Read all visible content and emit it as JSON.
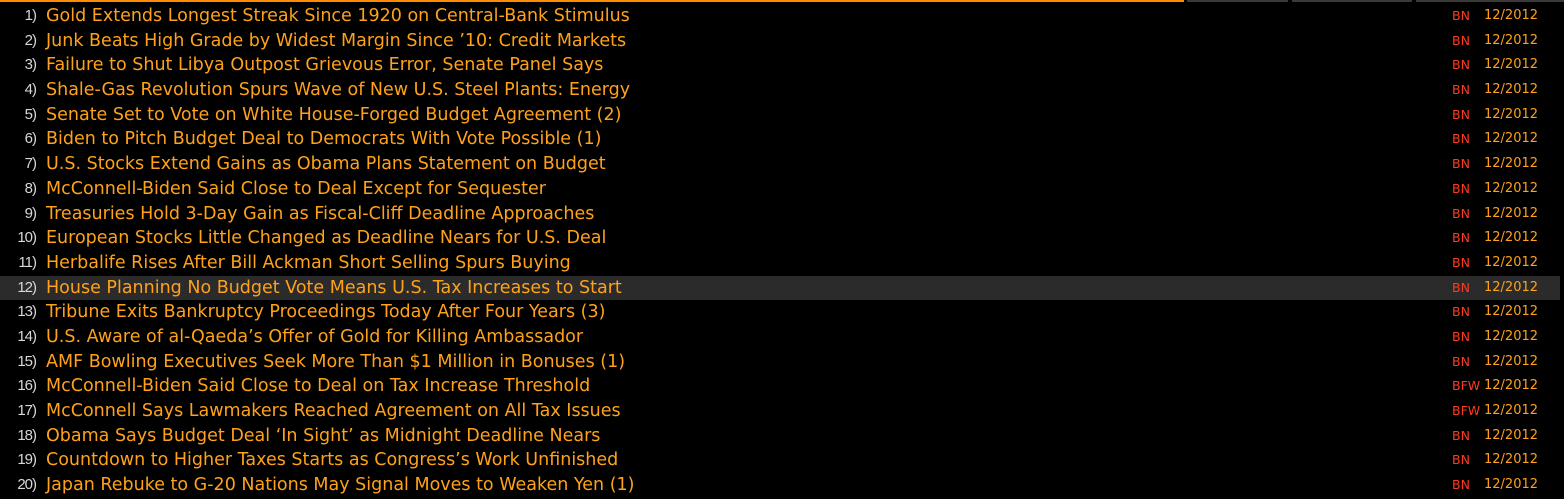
{
  "colors": {
    "background": "#000000",
    "headline": "#ffa21a",
    "source": "#ff3b1f",
    "number": "#d8d8d8",
    "selected_row": "#2b2b2b",
    "accent_bar": "#ff8c00"
  },
  "selected_index": 11,
  "news": [
    {
      "num": "1)",
      "headline": "Gold Extends Longest Streak Since 1920 on Central-Bank Stimulus",
      "source": "BN",
      "date": "12/2012"
    },
    {
      "num": "2)",
      "headline": "Junk Beats High Grade by Widest Margin Since ’10: Credit Markets",
      "source": "BN",
      "date": "12/2012"
    },
    {
      "num": "3)",
      "headline": "Failure to Shut Libya Outpost Grievous Error, Senate Panel Says",
      "source": "BN",
      "date": "12/2012"
    },
    {
      "num": "4)",
      "headline": "Shale-Gas Revolution Spurs Wave of New U.S. Steel Plants: Energy",
      "source": "BN",
      "date": "12/2012"
    },
    {
      "num": "5)",
      "headline": "Senate Set to Vote on White House-Forged Budget Agreement (2)",
      "source": "BN",
      "date": "12/2012"
    },
    {
      "num": "6)",
      "headline": "Biden to Pitch Budget Deal to Democrats With Vote Possible (1)",
      "source": "BN",
      "date": "12/2012"
    },
    {
      "num": "7)",
      "headline": "U.S. Stocks Extend Gains as Obama Plans Statement on Budget",
      "source": "BN",
      "date": "12/2012"
    },
    {
      "num": "8)",
      "headline": "McConnell-Biden Said Close to Deal Except for Sequester",
      "source": "BN",
      "date": "12/2012"
    },
    {
      "num": "9)",
      "headline": "Treasuries Hold 3-Day Gain as Fiscal-Cliff Deadline Approaches",
      "source": "BN",
      "date": "12/2012"
    },
    {
      "num": "10)",
      "headline": "European Stocks Little Changed as Deadline Nears for U.S. Deal",
      "source": "BN",
      "date": "12/2012"
    },
    {
      "num": "11)",
      "headline": "Herbalife Rises After Bill Ackman Short Selling Spurs Buying",
      "source": "BN",
      "date": "12/2012"
    },
    {
      "num": "12)",
      "headline": "House Planning No Budget Vote Means U.S. Tax Increases to Start",
      "source": "BN",
      "date": "12/2012"
    },
    {
      "num": "13)",
      "headline": "Tribune Exits Bankruptcy Proceedings Today After Four Years (3)",
      "source": "BN",
      "date": "12/2012"
    },
    {
      "num": "14)",
      "headline": "U.S. Aware of al-Qaeda’s Offer of Gold for Killing Ambassador",
      "source": "BN",
      "date": "12/2012"
    },
    {
      "num": "15)",
      "headline": "AMF Bowling Executives Seek More Than $1 Million in Bonuses (1)",
      "source": "BN",
      "date": "12/2012"
    },
    {
      "num": "16)",
      "headline": "McConnell-Biden Said Close to Deal on Tax Increase Threshold",
      "source": "BFW",
      "date": "12/2012"
    },
    {
      "num": "17)",
      "headline": "McConnell Says Lawmakers Reached Agreement on All Tax Issues",
      "source": "BFW",
      "date": "12/2012"
    },
    {
      "num": "18)",
      "headline": "Obama Says Budget Deal ‘In Sight’ as Midnight Deadline Nears",
      "source": "BN",
      "date": "12/2012"
    },
    {
      "num": "19)",
      "headline": "Countdown to Higher Taxes Starts as Congress’s Work Unfinished",
      "source": "BN",
      "date": "12/2012"
    },
    {
      "num": "20)",
      "headline": "Japan Rebuke to G-20 Nations May Signal Moves to Weaken Yen (1)",
      "source": "BN",
      "date": "12/2012"
    }
  ]
}
